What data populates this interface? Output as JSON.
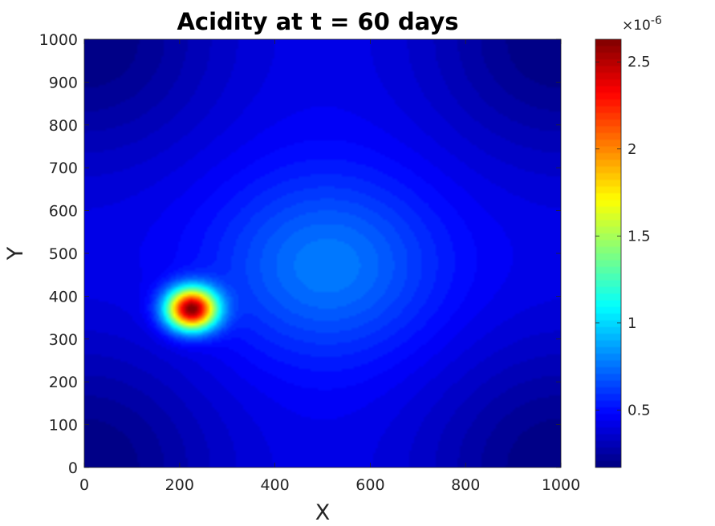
{
  "chart_data": {
    "type": "heatmap",
    "title": "Acidity at t = 60 days",
    "xlabel": "X",
    "ylabel": "Y",
    "xlim": [
      0,
      1000
    ],
    "ylim": [
      0,
      1000
    ],
    "x_ticks": [
      "0",
      "200",
      "400",
      "600",
      "800",
      "1000"
    ],
    "y_ticks": [
      "0",
      "100",
      "200",
      "300",
      "400",
      "500",
      "600",
      "700",
      "800",
      "900",
      "1000"
    ],
    "x_tick_values": [
      0,
      200,
      400,
      600,
      800,
      1000
    ],
    "y_tick_values": [
      0,
      100,
      200,
      300,
      400,
      500,
      600,
      700,
      800,
      900,
      1000
    ],
    "colormap": "jet",
    "colorbar": {
      "range": [
        0.17,
        2.63
      ],
      "ticks": [
        "0.5",
        "1",
        "1.5",
        "2",
        "2.5"
      ],
      "tick_values": [
        0.5,
        1,
        1.5,
        2,
        2.5
      ],
      "exponent_label": "×10",
      "exponent_power": "-6",
      "placement": "right"
    },
    "field_features": {
      "peak": {
        "x": 225,
        "y": 370,
        "value": 2.63
      },
      "plume_center": {
        "x": 510,
        "y": 470,
        "value": 0.78
      },
      "corner_min_value": 0.17,
      "ambient_value": 0.45
    },
    "grid": false
  }
}
